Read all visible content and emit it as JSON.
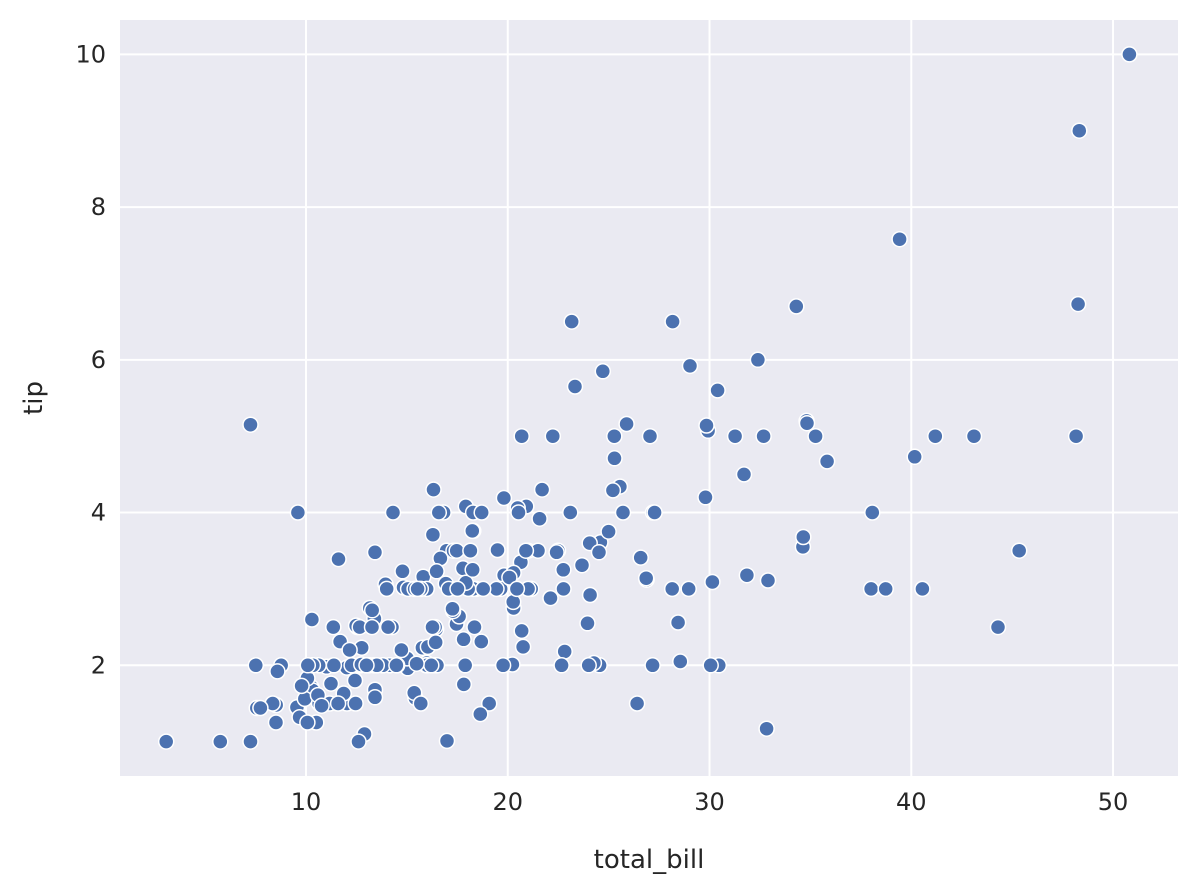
{
  "chart_data": {
    "type": "scatter",
    "title": "",
    "xlabel": "total_bill",
    "ylabel": "tip",
    "xlim": [
      0.78,
      53.22
    ],
    "ylim": [
      0.55,
      10.45
    ],
    "xticks": [
      10,
      20,
      30,
      40,
      50
    ],
    "yticks": [
      2,
      4,
      6,
      8,
      10
    ],
    "grid": true,
    "background": "#eaeaf2",
    "grid_color": "#ffffff",
    "marker_color": "#4c72b0",
    "marker_edge": "#ffffff",
    "points": [
      [
        16.99,
        1.01
      ],
      [
        10.34,
        1.66
      ],
      [
        21.01,
        3.5
      ],
      [
        23.68,
        3.31
      ],
      [
        24.59,
        3.61
      ],
      [
        25.29,
        4.71
      ],
      [
        8.77,
        2.0
      ],
      [
        26.88,
        3.12
      ],
      [
        15.04,
        1.96
      ],
      [
        14.78,
        3.23
      ],
      [
        10.27,
        1.71
      ],
      [
        35.26,
        5.0
      ],
      [
        15.42,
        1.57
      ],
      [
        18.43,
        3.0
      ],
      [
        14.83,
        3.02
      ],
      [
        21.58,
        3.92
      ],
      [
        10.33,
        1.67
      ],
      [
        16.29,
        3.71
      ],
      [
        16.97,
        3.5
      ],
      [
        20.65,
        3.35
      ],
      [
        17.92,
        4.08
      ],
      [
        20.29,
        2.75
      ],
      [
        15.77,
        2.23
      ],
      [
        39.42,
        7.58
      ],
      [
        19.82,
        3.18
      ],
      [
        17.81,
        2.34
      ],
      [
        13.37,
        2.0
      ],
      [
        12.69,
        2.0
      ],
      [
        21.7,
        4.3
      ],
      [
        19.65,
        3.0
      ],
      [
        9.55,
        1.45
      ],
      [
        18.35,
        2.5
      ],
      [
        15.06,
        3.0
      ],
      [
        20.69,
        2.45
      ],
      [
        17.78,
        3.27
      ],
      [
        24.06,
        3.6
      ],
      [
        16.31,
        2.0
      ],
      [
        16.93,
        3.07
      ],
      [
        18.69,
        2.31
      ],
      [
        31.27,
        5.0
      ],
      [
        16.04,
        2.24
      ],
      [
        17.46,
        2.54
      ],
      [
        13.94,
        3.06
      ],
      [
        9.68,
        1.32
      ],
      [
        30.4,
        5.6
      ],
      [
        18.29,
        3.0
      ],
      [
        22.23,
        5.0
      ],
      [
        32.4,
        6.0
      ],
      [
        28.55,
        2.05
      ],
      [
        18.04,
        3.0
      ],
      [
        12.54,
        2.5
      ],
      [
        10.29,
        2.6
      ],
      [
        34.81,
        5.2
      ],
      [
        9.94,
        1.56
      ],
      [
        25.56,
        4.34
      ],
      [
        19.49,
        3.51
      ],
      [
        38.01,
        3.0
      ],
      [
        26.41,
        1.5
      ],
      [
        11.24,
        1.76
      ],
      [
        48.27,
        6.73
      ],
      [
        20.29,
        3.21
      ],
      [
        13.81,
        2.0
      ],
      [
        11.02,
        1.98
      ],
      [
        18.29,
        3.76
      ],
      [
        17.59,
        2.64
      ],
      [
        20.08,
        3.15
      ],
      [
        16.45,
        2.47
      ],
      [
        3.07,
        1.0
      ],
      [
        20.23,
        2.01
      ],
      [
        15.01,
        2.09
      ],
      [
        12.02,
        1.97
      ],
      [
        17.07,
        3.0
      ],
      [
        26.86,
        3.14
      ],
      [
        25.28,
        5.0
      ],
      [
        14.73,
        2.2
      ],
      [
        10.51,
        1.25
      ],
      [
        17.92,
        3.08
      ],
      [
        27.2,
        4.0
      ],
      [
        22.76,
        3.0
      ],
      [
        17.29,
        2.71
      ],
      [
        19.44,
        3.0
      ],
      [
        16.66,
        3.4
      ],
      [
        10.07,
        1.83
      ],
      [
        32.68,
        5.0
      ],
      [
        15.98,
        2.03
      ],
      [
        34.83,
        5.17
      ],
      [
        13.03,
        2.0
      ],
      [
        18.28,
        4.0
      ],
      [
        24.71,
        5.85
      ],
      [
        21.16,
        3.0
      ],
      [
        28.97,
        3.0
      ],
      [
        22.49,
        3.5
      ],
      [
        5.75,
        1.0
      ],
      [
        16.32,
        4.3
      ],
      [
        22.75,
        3.25
      ],
      [
        40.17,
        4.73
      ],
      [
        27.28,
        4.0
      ],
      [
        12.03,
        1.5
      ],
      [
        21.01,
        3.0
      ],
      [
        12.46,
        1.5
      ],
      [
        11.35,
        2.5
      ],
      [
        15.38,
        3.0
      ],
      [
        44.3,
        2.5
      ],
      [
        22.42,
        3.48
      ],
      [
        20.92,
        4.08
      ],
      [
        15.36,
        1.64
      ],
      [
        20.49,
        4.06
      ],
      [
        25.21,
        4.29
      ],
      [
        18.24,
        3.76
      ],
      [
        14.31,
        4.0
      ],
      [
        14.0,
        3.0
      ],
      [
        7.25,
        1.0
      ],
      [
        38.07,
        4.0
      ],
      [
        23.95,
        2.55
      ],
      [
        25.71,
        4.0
      ],
      [
        17.31,
        3.5
      ],
      [
        29.93,
        5.07
      ],
      [
        10.65,
        1.5
      ],
      [
        12.43,
        1.8
      ],
      [
        24.08,
        2.92
      ],
      [
        11.69,
        2.31
      ],
      [
        13.42,
        1.68
      ],
      [
        14.26,
        2.5
      ],
      [
        15.95,
        2.0
      ],
      [
        12.48,
        2.52
      ],
      [
        29.8,
        4.2
      ],
      [
        8.52,
        1.48
      ],
      [
        14.52,
        2.0
      ],
      [
        11.38,
        2.0
      ],
      [
        22.82,
        2.18
      ],
      [
        19.08,
        1.5
      ],
      [
        20.27,
        2.83
      ],
      [
        11.17,
        1.5
      ],
      [
        12.26,
        2.0
      ],
      [
        18.26,
        3.25
      ],
      [
        8.51,
        1.25
      ],
      [
        10.33,
        2.0
      ],
      [
        14.15,
        2.0
      ],
      [
        16.0,
        2.0
      ],
      [
        13.16,
        2.75
      ],
      [
        17.47,
        3.5
      ],
      [
        34.3,
        6.7
      ],
      [
        41.19,
        5.0
      ],
      [
        27.05,
        5.0
      ],
      [
        16.43,
        2.3
      ],
      [
        8.35,
        1.5
      ],
      [
        18.64,
        1.36
      ],
      [
        11.87,
        1.63
      ],
      [
        9.78,
        1.73
      ],
      [
        7.51,
        2.0
      ],
      [
        14.07,
        2.5
      ],
      [
        13.13,
        2.0
      ],
      [
        17.26,
        2.74
      ],
      [
        24.55,
        2.0
      ],
      [
        19.77,
        2.0
      ],
      [
        29.85,
        5.14
      ],
      [
        48.17,
        5.0
      ],
      [
        25.0,
        3.75
      ],
      [
        13.39,
        2.61
      ],
      [
        16.49,
        2.0
      ],
      [
        21.5,
        3.5
      ],
      [
        12.66,
        2.5
      ],
      [
        16.21,
        2.0
      ],
      [
        13.81,
        2.0
      ],
      [
        17.51,
        3.0
      ],
      [
        24.52,
        3.48
      ],
      [
        20.76,
        2.24
      ],
      [
        31.71,
        4.5
      ],
      [
        10.59,
        1.61
      ],
      [
        10.63,
        2.0
      ],
      [
        50.81,
        10.0
      ],
      [
        15.81,
        3.16
      ],
      [
        7.25,
        5.15
      ],
      [
        31.85,
        3.18
      ],
      [
        16.82,
        4.0
      ],
      [
        32.9,
        3.11
      ],
      [
        17.89,
        2.0
      ],
      [
        14.48,
        2.0
      ],
      [
        9.6,
        4.0
      ],
      [
        34.63,
        3.55
      ],
      [
        34.65,
        3.68
      ],
      [
        23.33,
        5.65
      ],
      [
        45.35,
        3.5
      ],
      [
        23.17,
        6.5
      ],
      [
        40.55,
        3.0
      ],
      [
        20.69,
        5.0
      ],
      [
        20.9,
        3.5
      ],
      [
        30.46,
        2.0
      ],
      [
        18.15,
        3.5
      ],
      [
        23.1,
        4.0
      ],
      [
        15.69,
        1.5
      ],
      [
        19.81,
        4.19
      ],
      [
        28.44,
        2.56
      ],
      [
        15.48,
        2.02
      ],
      [
        16.58,
        4.0
      ],
      [
        7.56,
        1.44
      ],
      [
        10.34,
        2.0
      ],
      [
        43.11,
        5.0
      ],
      [
        13.0,
        2.0
      ],
      [
        13.51,
        2.0
      ],
      [
        18.71,
        4.0
      ],
      [
        12.74,
        2.01
      ],
      [
        13.0,
        2.0
      ],
      [
        16.4,
        2.5
      ],
      [
        20.53,
        4.0
      ],
      [
        16.47,
        3.23
      ],
      [
        26.59,
        3.41
      ],
      [
        38.73,
        3.0
      ],
      [
        24.27,
        2.03
      ],
      [
        12.76,
        2.23
      ],
      [
        30.06,
        2.0
      ],
      [
        25.89,
        5.16
      ],
      [
        48.33,
        9.0
      ],
      [
        13.27,
        2.5
      ],
      [
        28.17,
        6.5
      ],
      [
        12.9,
        1.1
      ],
      [
        28.15,
        3.0
      ],
      [
        11.59,
        1.5
      ],
      [
        7.74,
        1.44
      ],
      [
        30.14,
        3.09
      ],
      [
        12.16,
        2.2
      ],
      [
        13.42,
        3.48
      ],
      [
        8.58,
        1.92
      ],
      [
        15.98,
        3.0
      ],
      [
        13.42,
        1.58
      ],
      [
        16.27,
        2.5
      ],
      [
        10.09,
        2.0
      ],
      [
        20.45,
        3.0
      ],
      [
        13.28,
        2.72
      ],
      [
        22.12,
        2.88
      ],
      [
        24.01,
        2.0
      ],
      [
        15.69,
        3.0
      ],
      [
        11.61,
        3.39
      ],
      [
        10.77,
        1.47
      ],
      [
        15.53,
        3.0
      ],
      [
        10.07,
        1.25
      ],
      [
        12.6,
        1.0
      ],
      [
        32.83,
        1.17
      ],
      [
        35.83,
        4.67
      ],
      [
        29.03,
        5.92
      ],
      [
        27.18,
        2.0
      ],
      [
        22.67,
        2.0
      ],
      [
        17.82,
        1.75
      ],
      [
        18.78,
        3.0
      ]
    ]
  }
}
